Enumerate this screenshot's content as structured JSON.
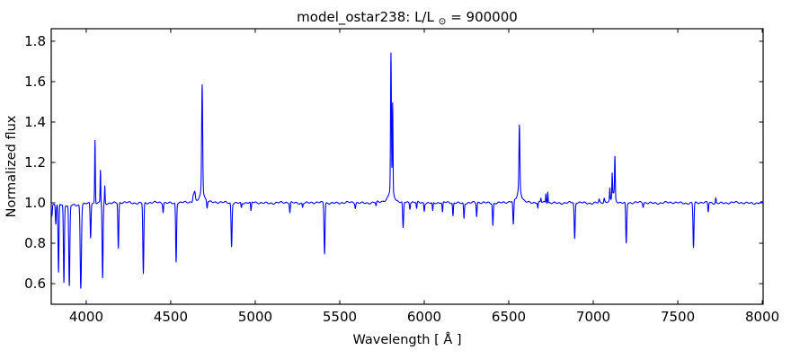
{
  "chart_data": {
    "type": "line",
    "title": {
      "prefix": "model_ostar238: L/L",
      "sub": "⊙",
      "suffix": " = 900000"
    },
    "xlabel": "Wavelength [ Å ]",
    "ylabel": "Normalized flux",
    "xlim": [
      3793,
      8005
    ],
    "ylim": [
      0.498,
      1.862
    ],
    "xticks": [
      "4000",
      "4500",
      "5000",
      "5500",
      "6000",
      "6500",
      "7000",
      "7500",
      "8000"
    ],
    "yticks": [
      "0.6",
      "0.8",
      "1.0",
      "1.2",
      "1.4",
      "1.6",
      "1.8"
    ],
    "grid": false,
    "legend": "none",
    "line_color": "#0000ff",
    "axis_color": "#000000",
    "background_color": "#ffffff",
    "continuum": 1.0,
    "features": [
      {
        "l": 3797,
        "a": -0.055,
        "w": 2.4
      },
      {
        "l": 3820,
        "a": -0.095,
        "w": 2.4
      },
      {
        "l": 3836,
        "a": -0.34,
        "w": 2.6
      },
      {
        "l": 3868,
        "a": -0.385,
        "w": 2.8
      },
      {
        "l": 3900,
        "a": -0.4,
        "w": 3.2
      },
      {
        "l": 3968,
        "a": -0.41,
        "w": 3.6
      },
      {
        "l": 3880,
        "a": -0.012,
        "w": 90
      },
      {
        "l": 4026,
        "a": -0.17,
        "w": 2.6
      },
      {
        "l": 4052,
        "a": 0.31,
        "w": 2.0
      },
      {
        "l": 4084,
        "a": 0.16,
        "w": 1.8
      },
      {
        "l": 4097,
        "a": -0.37,
        "w": 2.8
      },
      {
        "l": 4110,
        "a": 0.085,
        "w": 1.8
      },
      {
        "l": 4190,
        "a": -0.225,
        "w": 2.7
      },
      {
        "l": 4338,
        "a": -0.35,
        "w": 2.9
      },
      {
        "l": 4455,
        "a": -0.045,
        "w": 2.4
      },
      {
        "l": 4532,
        "a": -0.29,
        "w": 2.7
      },
      {
        "l": 4634,
        "a": 0.035,
        "w": 3.5
      },
      {
        "l": 4642,
        "a": 0.045,
        "w": 3.5
      },
      {
        "l": 4686,
        "a": 0.515,
        "w": 2.9
      },
      {
        "l": 4686,
        "a": 0.075,
        "w": 13,
        "t": "l"
      },
      {
        "l": 4715,
        "a": -0.035,
        "w": 2.4
      },
      {
        "l": 4860,
        "a": -0.215,
        "w": 2.9
      },
      {
        "l": 4918,
        "a": -0.025,
        "w": 2.4
      },
      {
        "l": 4975,
        "a": -0.045,
        "w": 2.4
      },
      {
        "l": 5205,
        "a": -0.05,
        "w": 2.4
      },
      {
        "l": 5280,
        "a": -0.02,
        "w": 2.0
      },
      {
        "l": 5410,
        "a": -0.25,
        "w": 2.9
      },
      {
        "l": 5592,
        "a": -0.025,
        "w": 2.4
      },
      {
        "l": 5715,
        "a": -0.02,
        "w": 2.4
      },
      {
        "l": 5803,
        "a": 0.655,
        "w": 2.4
      },
      {
        "l": 5813,
        "a": 0.42,
        "w": 2.0
      },
      {
        "l": 5806,
        "a": 0.09,
        "w": 14,
        "t": "l"
      },
      {
        "l": 5875,
        "a": -0.13,
        "w": 2.9
      },
      {
        "l": 5915,
        "a": -0.03,
        "w": 2.2
      },
      {
        "l": 5955,
        "a": -0.033,
        "w": 2.2
      },
      {
        "l": 6000,
        "a": -0.038,
        "w": 2.2
      },
      {
        "l": 6050,
        "a": -0.042,
        "w": 2.2
      },
      {
        "l": 6108,
        "a": -0.05,
        "w": 2.3
      },
      {
        "l": 6170,
        "a": -0.065,
        "w": 2.3
      },
      {
        "l": 6235,
        "a": -0.075,
        "w": 2.4
      },
      {
        "l": 6310,
        "a": -0.068,
        "w": 2.4
      },
      {
        "l": 6406,
        "a": -0.11,
        "w": 2.5
      },
      {
        "l": 6527,
        "a": -0.12,
        "w": 2.7
      },
      {
        "l": 6563,
        "a": 0.3,
        "w": 2.6
      },
      {
        "l": 6563,
        "a": 0.085,
        "w": 12,
        "t": "l"
      },
      {
        "l": 6672,
        "a": -0.028,
        "w": 2.0
      },
      {
        "l": 6690,
        "a": 0.02,
        "w": 2.0
      },
      {
        "l": 6720,
        "a": 0.045,
        "w": 1.8
      },
      {
        "l": 6731,
        "a": 0.055,
        "w": 1.6
      },
      {
        "l": 6890,
        "a": -0.18,
        "w": 2.9
      },
      {
        "l": 7035,
        "a": 0.015,
        "w": 2.5
      },
      {
        "l": 7065,
        "a": 0.02,
        "w": 2.5
      },
      {
        "l": 7098,
        "a": 0.06,
        "w": 1.8
      },
      {
        "l": 7112,
        "a": 0.12,
        "w": 1.9
      },
      {
        "l": 7128,
        "a": 0.2,
        "w": 2.1
      },
      {
        "l": 7120,
        "a": 0.05,
        "w": 9,
        "t": "l"
      },
      {
        "l": 7195,
        "a": -0.2,
        "w": 2.9
      },
      {
        "l": 7295,
        "a": -0.02,
        "w": 2.2
      },
      {
        "l": 7593,
        "a": -0.22,
        "w": 2.9
      },
      {
        "l": 7680,
        "a": -0.045,
        "w": 2.4
      },
      {
        "l": 7725,
        "a": 0.025,
        "w": 2.0
      }
    ],
    "noise": [
      {
        "amp": 0.003,
        "freq": 0.21,
        "phase": 0
      },
      {
        "amp": 0.0025,
        "freq": 0.077,
        "phase": 1.3
      },
      {
        "amp": 0.002,
        "freq": 0.033,
        "phase": 0.4
      }
    ]
  }
}
